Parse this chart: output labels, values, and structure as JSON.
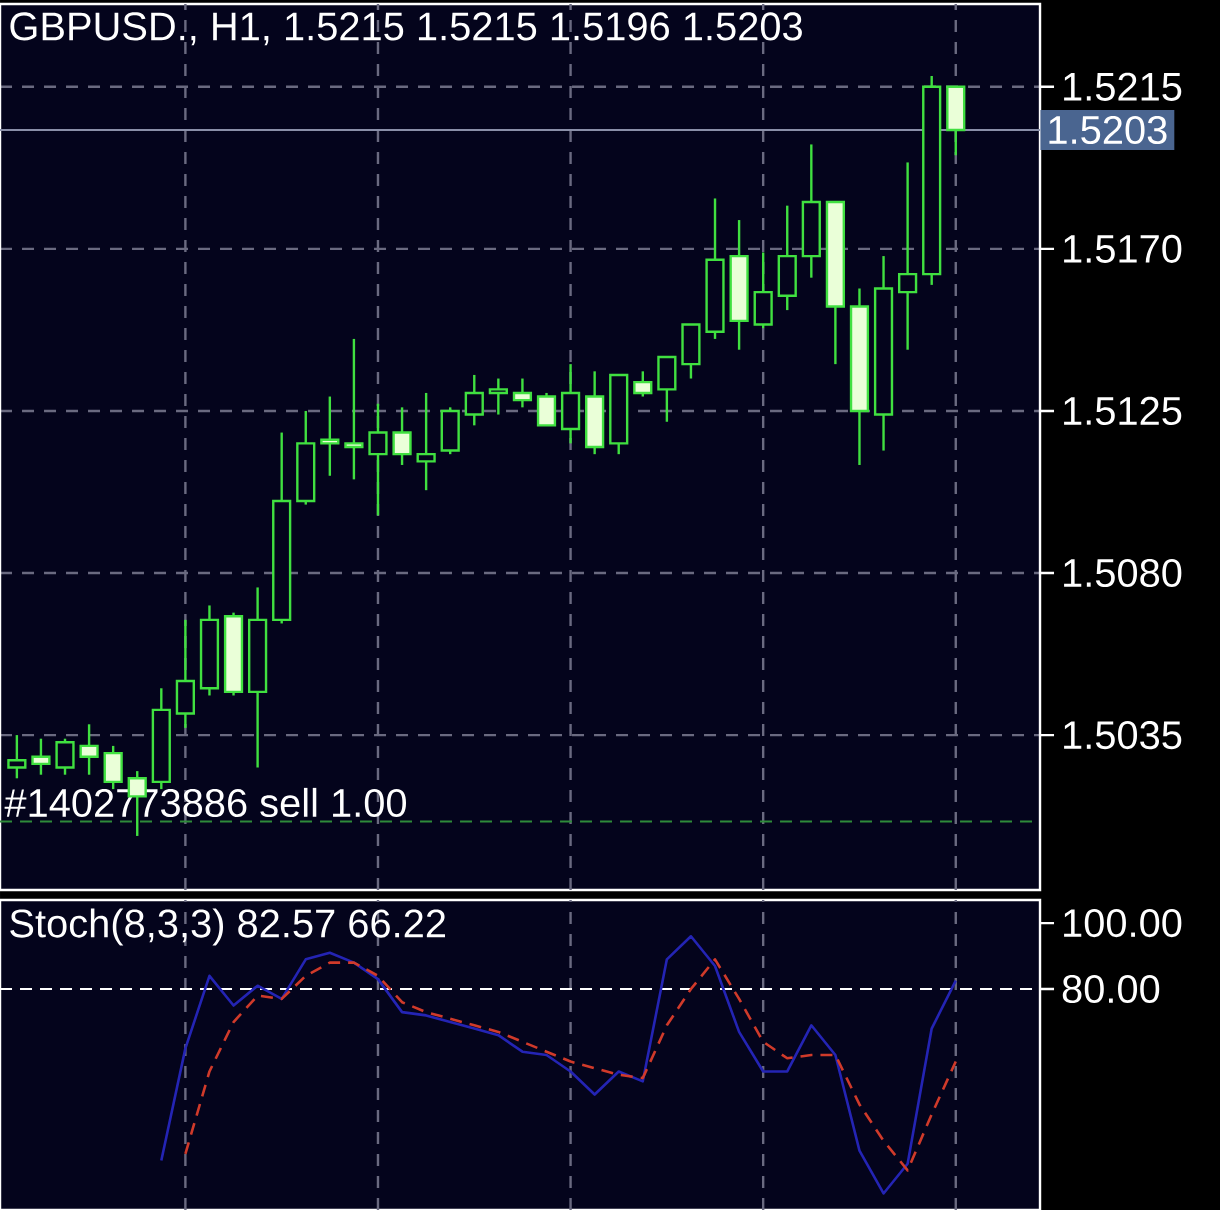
{
  "chart_data": [
    {
      "type": "candlestick",
      "title": "GBPUSD., H1, 1.5215 1.5215 1.5196 1.5203",
      "categories": [
        null,
        null,
        null,
        null,
        null,
        null,
        null,
        null,
        null,
        null,
        null,
        null,
        null,
        null,
        null,
        null,
        null,
        null,
        null,
        null,
        null,
        null,
        null,
        null,
        null,
        null,
        null,
        null,
        null,
        null,
        null,
        null,
        null,
        null,
        null,
        null,
        null,
        null,
        null,
        null
      ],
      "ohlc": [
        [
          1.5026,
          1.5035,
          1.5023,
          1.5028
        ],
        [
          1.5029,
          1.5034,
          1.5024,
          1.5027
        ],
        [
          1.5026,
          1.5034,
          1.5024,
          1.5033
        ],
        [
          1.5032,
          1.5038,
          1.5024,
          1.5029
        ],
        [
          1.503,
          1.5032,
          1.502,
          1.5022
        ],
        [
          1.5023,
          1.5025,
          1.5007,
          1.5018
        ],
        [
          1.5022,
          1.5048,
          1.502,
          1.5042
        ],
        [
          1.5041,
          1.5067,
          1.5037,
          1.505
        ],
        [
          1.5048,
          1.5071,
          1.5046,
          1.5067
        ],
        [
          1.5068,
          1.5069,
          1.5046,
          1.5047
        ],
        [
          1.5047,
          1.5076,
          1.5026,
          1.5067
        ],
        [
          1.5067,
          1.5119,
          1.5066,
          1.51
        ],
        [
          1.51,
          1.5125,
          1.5099,
          1.5116
        ],
        [
          1.5117,
          1.5129,
          1.5107,
          1.5116
        ],
        [
          1.5116,
          1.5145,
          1.5106,
          1.5115
        ],
        [
          1.5113,
          1.5127,
          1.5096,
          1.5119
        ],
        [
          1.5119,
          1.5126,
          1.511,
          1.5113
        ],
        [
          1.5111,
          1.513,
          1.5103,
          1.5113
        ],
        [
          1.5114,
          1.5126,
          1.5113,
          1.5125
        ],
        [
          1.5124,
          1.5135,
          1.5121,
          1.513
        ],
        [
          1.513,
          1.5134,
          1.5124,
          1.5131
        ],
        [
          1.513,
          1.5134,
          1.5126,
          1.5128
        ],
        [
          1.5129,
          1.513,
          1.5121,
          1.5121
        ],
        [
          1.512,
          1.5138,
          1.5116,
          1.513
        ],
        [
          1.5129,
          1.5136,
          1.5113,
          1.5115
        ],
        [
          1.5116,
          1.5135,
          1.5113,
          1.5135
        ],
        [
          1.5133,
          1.5136,
          1.5129,
          1.513
        ],
        [
          1.5131,
          1.514,
          1.5122,
          1.514
        ],
        [
          1.5138,
          1.5149,
          1.5134,
          1.5149
        ],
        [
          1.5147,
          1.5184,
          1.5145,
          1.5167
        ],
        [
          1.5168,
          1.5178,
          1.5142,
          1.515
        ],
        [
          1.5149,
          1.5169,
          1.5148,
          1.5158
        ],
        [
          1.5157,
          1.5182,
          1.5153,
          1.5168
        ],
        [
          1.5168,
          1.5199,
          1.5162,
          1.5183
        ],
        [
          1.5183,
          1.5183,
          1.5138,
          1.5154
        ],
        [
          1.5154,
          1.5159,
          1.511,
          1.5125
        ],
        [
          1.5124,
          1.5168,
          1.5114,
          1.5159
        ],
        [
          1.5158,
          1.5194,
          1.5142,
          1.5163
        ],
        [
          1.5163,
          1.5218,
          1.516,
          1.5215
        ],
        [
          1.5215,
          1.5215,
          1.5196,
          1.5203
        ]
      ],
      "color": "#40e040",
      "ylim": [
        1.4992,
        1.5238
      ],
      "yticks": [
        {
          "value": 1.5035,
          "label": "1.5035"
        },
        {
          "value": 1.508,
          "label": "1.5080"
        },
        {
          "value": 1.5125,
          "label": "1.5125"
        },
        {
          "value": 1.517,
          "label": "1.5170"
        },
        {
          "value": 1.5215,
          "label": "1.5215"
        }
      ],
      "grid": true,
      "tick_labels": "y",
      "ref_lines": [
        {
          "axis": "y",
          "value": 1.5203,
          "label": "1.5203",
          "color": "#8a8fa8",
          "line_style": "solid"
        },
        {
          "axis": "y",
          "value": 1.5011,
          "label": "#1402773886 sell 1.00",
          "color": "#2e8b3a",
          "line_style": "dashed"
        }
      ]
    },
    {
      "type": "line",
      "title": "Stoch(8,3,3) 82.57 66.22",
      "categories": [
        null,
        null,
        null,
        null,
        null,
        null,
        null,
        null,
        null,
        null,
        null,
        null,
        null,
        null,
        null,
        null,
        null,
        null,
        null,
        null,
        null,
        null,
        null,
        null,
        null,
        null,
        null,
        null,
        null,
        null,
        null,
        null,
        null,
        null,
        null,
        null,
        null,
        null,
        null,
        null
      ],
      "series": [
        {
          "color": "#2424b4",
          "line_style": "solid",
          "values": [
            null,
            null,
            null,
            null,
            null,
            null,
            28,
            62,
            84,
            75,
            81,
            77,
            89,
            91,
            88,
            83,
            73,
            72,
            70,
            68,
            66,
            61,
            60,
            55,
            48,
            55,
            52,
            89,
            96,
            87,
            67,
            55,
            55,
            69,
            60,
            31,
            18,
            27,
            68,
            82.57
          ]
        },
        {
          "color": "#d03a2a",
          "line_style": "dashed",
          "values": [
            null,
            null,
            null,
            null,
            null,
            null,
            null,
            30,
            55,
            70,
            78,
            77,
            84,
            88,
            88,
            84,
            76,
            73,
            71,
            69,
            67,
            64,
            61,
            58,
            56,
            54,
            53,
            69,
            80,
            89,
            77,
            64,
            59,
            60,
            60,
            45,
            34,
            25,
            42,
            58
          ]
        }
      ],
      "ylim": [
        13,
        107
      ],
      "yticks": [
        {
          "value": 100,
          "label": "100.00"
        },
        {
          "value": 80,
          "label": "80.00"
        }
      ],
      "grid": "x",
      "tick_labels": "y",
      "ref_lines": [
        {
          "axis": "y",
          "value": 80,
          "color": "#ffffff",
          "line_style": "dashed"
        }
      ]
    }
  ]
}
